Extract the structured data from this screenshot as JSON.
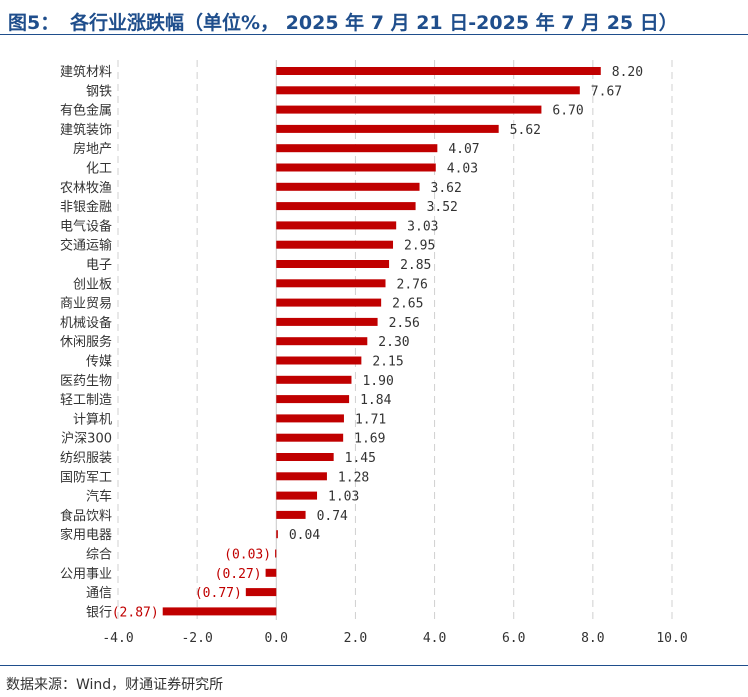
{
  "header": {
    "figure_label": "图5：",
    "title": "各行业涨跌幅（单位%， 2025 年 7 月 21 日-2025 年 7 月 25 日）"
  },
  "footer": {
    "source": "数据来源：Wind，财通证券研究所"
  },
  "chart_data": {
    "type": "bar",
    "orientation": "horizontal",
    "title": "各行业涨跌幅（单位%， 2025 年 7 月 21 日-2025 年 7 月 25 日）",
    "categories": [
      "建筑材料",
      "钢铁",
      "有色金属",
      "建筑装饰",
      "房地产",
      "化工",
      "农林牧渔",
      "非银金融",
      "电气设备",
      "交通运输",
      "电子",
      "创业板",
      "商业贸易",
      "机械设备",
      "休闲服务",
      "传媒",
      "医药生物",
      "轻工制造",
      "计算机",
      "沪深300",
      "纺织服装",
      "国防军工",
      "汽车",
      "食品饮料",
      "家用电器",
      "综合",
      "公用事业",
      "通信",
      "银行"
    ],
    "values": [
      8.2,
      7.67,
      6.7,
      5.62,
      4.07,
      4.03,
      3.62,
      3.52,
      3.03,
      2.95,
      2.85,
      2.76,
      2.65,
      2.56,
      2.3,
      2.15,
      1.9,
      1.84,
      1.71,
      1.69,
      1.45,
      1.28,
      1.03,
      0.74,
      0.04,
      -0.03,
      -0.27,
      -0.77,
      -2.87
    ],
    "value_labels": [
      "8.20",
      "7.67",
      "6.70",
      "5.62",
      "4.07",
      "4.03",
      "3.62",
      "3.52",
      "3.03",
      "2.95",
      "2.85",
      "2.76",
      "2.65",
      "2.56",
      "2.30",
      "2.15",
      "1.90",
      "1.84",
      "1.71",
      "1.69",
      "1.45",
      "1.28",
      "1.03",
      "0.74",
      "0.04",
      "(0.03)",
      "(0.27)",
      "(0.77)",
      "(2.87)"
    ],
    "xlim": [
      -4,
      10
    ],
    "xticks": [
      -4,
      -2,
      0,
      2,
      4,
      6,
      8,
      10
    ],
    "xtick_labels": [
      "-4.0",
      "-2.0",
      "0.0",
      "2.0",
      "4.0",
      "6.0",
      "8.0",
      "10.0"
    ],
    "grid": "vertical dashed",
    "bar_color": "#c00000",
    "positive_label_color": "#333333",
    "negative_label_color": "#c00000"
  }
}
